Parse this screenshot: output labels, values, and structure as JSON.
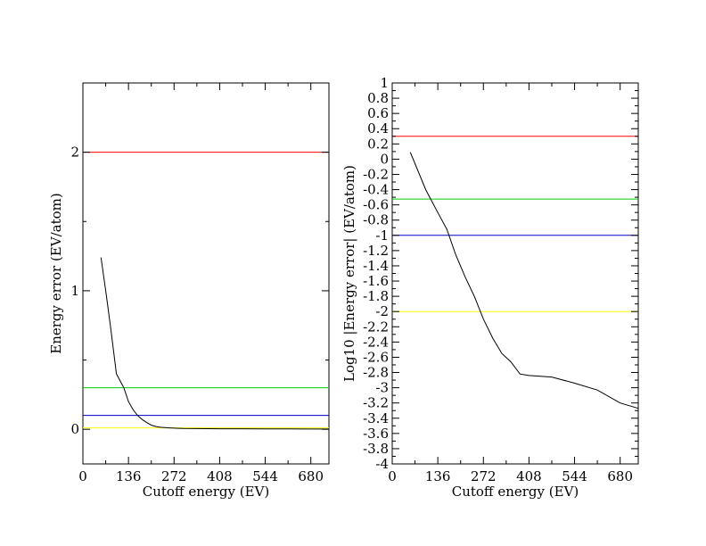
{
  "chart_data": [
    {
      "type": "line",
      "title": "",
      "xlabel": "Cutoff energy (EV)",
      "ylabel": "Energy error (EV/atom)",
      "xlim": [
        0,
        734
      ],
      "ylim": [
        -0.25,
        2.5
      ],
      "xticks": [
        0,
        136,
        272,
        408,
        544,
        680
      ],
      "xtick_labels": [
        "0",
        "136",
        "272",
        "408",
        "544",
        "680"
      ],
      "yticks": [
        0,
        1,
        2
      ],
      "ytick_labels": [
        "0",
        "1",
        "2"
      ],
      "grid": false,
      "series": [
        {
          "color": "#000000",
          "x": [
            54,
            68,
            82,
            100,
            122,
            136,
            150,
            163,
            177,
            190,
            204,
            218,
            231,
            245,
            258,
            272,
            286,
            300,
            340,
            408,
            476,
            544,
            612,
            680,
            734
          ],
          "y": [
            1.24,
            1.0,
            0.75,
            0.4,
            0.3,
            0.2,
            0.14,
            0.1,
            0.07,
            0.05,
            0.03,
            0.02,
            0.015,
            0.012,
            0.01,
            0.008,
            0.007,
            0.006,
            0.005,
            0.004,
            0.004,
            0.003,
            0.003,
            0.002,
            0.002
          ]
        }
      ],
      "reference_lines": [
        {
          "y": 2.0,
          "color": "#ff0000"
        },
        {
          "y": 0.3,
          "color": "#00cc00"
        },
        {
          "y": 0.1,
          "color": "#0000cc"
        },
        {
          "y": 0.01,
          "color": "#ffff00"
        }
      ]
    },
    {
      "type": "line",
      "title": "",
      "xlabel": "Cutoff energy (EV)",
      "ylabel": "Log10 |Energy error| (EV/atom)",
      "xlim": [
        0,
        734
      ],
      "ylim": [
        -4,
        1
      ],
      "xticks": [
        0,
        136,
        272,
        408,
        544,
        680
      ],
      "xtick_labels": [
        "0",
        "136",
        "272",
        "408",
        "544",
        "680"
      ],
      "yticks": [
        1,
        0.8,
        0.6,
        0.4,
        0.2,
        0,
        -0.2,
        -0.4,
        -0.6,
        -0.8,
        -1,
        -1.2,
        -1.4,
        -1.6,
        -1.8,
        -2,
        -2.2,
        -2.4,
        -2.6,
        -2.8,
        -3,
        -3.2,
        -3.4,
        -3.6,
        -3.8,
        -4
      ],
      "ytick_labels": [
        "1",
        "0.8",
        "0.6",
        "0.4",
        "0.2",
        "0",
        "-0.2",
        "-0.4",
        "-0.6",
        "-0.8",
        "-1",
        "-1.2",
        "-1.4",
        "-1.6",
        "-1.8",
        "-2",
        "-2.2",
        "-2.4",
        "-2.6",
        "-2.8",
        "-3",
        "-3.2",
        "-3.4",
        "-3.6",
        "-3.8",
        "-4"
      ],
      "grid": false,
      "series": [
        {
          "color": "#000000",
          "x": [
            54,
            100,
            136,
            163,
            190,
            218,
            245,
            272,
            300,
            327,
            354,
            381,
            408,
            476,
            544,
            612,
            680,
            734
          ],
          "y": [
            0.09,
            -0.4,
            -0.7,
            -0.92,
            -1.26,
            -1.55,
            -1.8,
            -2.1,
            -2.35,
            -2.55,
            -2.66,
            -2.82,
            -2.84,
            -2.86,
            -2.94,
            -3.03,
            -3.2,
            -3.27
          ]
        }
      ],
      "reference_lines": [
        {
          "y": 0.301,
          "color": "#ff0000"
        },
        {
          "y": -0.523,
          "color": "#00cc00"
        },
        {
          "y": -1.0,
          "color": "#0000cc"
        },
        {
          "y": -2.0,
          "color": "#ffff00"
        }
      ]
    }
  ]
}
